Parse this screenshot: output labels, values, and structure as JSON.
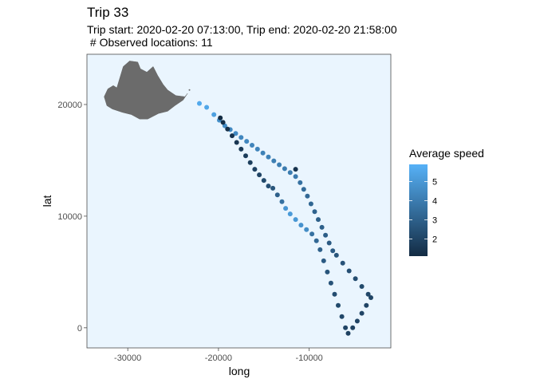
{
  "chart_data": {
    "type": "scatter",
    "title": "Trip 33",
    "subtitle_line1": "Trip start: 2020-02-20 07:13:00, Trip end: 2020-02-20 21:58:00",
    "subtitle_line2": " # Observed locations: 11",
    "xlabel": "long",
    "ylabel": "lat",
    "xlim": [
      -34500,
      -1000
    ],
    "ylim": [
      -1800,
      24500
    ],
    "x_ticks": [
      -30000,
      -20000,
      -10000
    ],
    "x_tick_labels": [
      "-30000",
      "-20000",
      "-10000"
    ],
    "y_ticks": [
      0,
      10000,
      20000
    ],
    "y_tick_labels": [
      "0",
      "10000",
      "20000"
    ],
    "panel_background": "#eaf5fe",
    "legend": {
      "title": "Average speed",
      "breaks": [
        2,
        3,
        4,
        5
      ],
      "break_labels": [
        "2",
        "3",
        "4",
        "5"
      ],
      "range": [
        1.1,
        5.9
      ],
      "color_low": "#132b43",
      "color_high": "#56b1f7"
    },
    "points": [
      {
        "x": -22100,
        "y": 20100,
        "speed": 5.6
      },
      {
        "x": -21300,
        "y": 19750,
        "speed": 5.5
      },
      {
        "x": -20500,
        "y": 19100,
        "speed": 5.3
      },
      {
        "x": -19900,
        "y": 18600,
        "speed": 4.7
      },
      {
        "x": -19300,
        "y": 18100,
        "speed": 4.6
      },
      {
        "x": -18700,
        "y": 17750,
        "speed": 4.5
      },
      {
        "x": -18100,
        "y": 17400,
        "speed": 4.5
      },
      {
        "x": -17500,
        "y": 17050,
        "speed": 4.4
      },
      {
        "x": -16900,
        "y": 16700,
        "speed": 4.4
      },
      {
        "x": -16300,
        "y": 16350,
        "speed": 4.3
      },
      {
        "x": -15700,
        "y": 16000,
        "speed": 4.3
      },
      {
        "x": -15100,
        "y": 15650,
        "speed": 4.2
      },
      {
        "x": -14500,
        "y": 15300,
        "speed": 4.2
      },
      {
        "x": -13900,
        "y": 14950,
        "speed": 4.1
      },
      {
        "x": -13300,
        "y": 14600,
        "speed": 4.1
      },
      {
        "x": -12700,
        "y": 14250,
        "speed": 4.0
      },
      {
        "x": -12100,
        "y": 13900,
        "speed": 4.0
      },
      {
        "x": -11500,
        "y": 13550,
        "speed": 3.9
      },
      {
        "x": -11000,
        "y": 13000,
        "speed": 3.6
      },
      {
        "x": -10600,
        "y": 12400,
        "speed": 3.4
      },
      {
        "x": -10200,
        "y": 11800,
        "speed": 3.3
      },
      {
        "x": -9800,
        "y": 11100,
        "speed": 3.2
      },
      {
        "x": -9400,
        "y": 10400,
        "speed": 3.1
      },
      {
        "x": -9000,
        "y": 9700,
        "speed": 3.0
      },
      {
        "x": -8600,
        "y": 9000,
        "speed": 3.0
      },
      {
        "x": -8200,
        "y": 8300,
        "speed": 2.9
      },
      {
        "x": -7800,
        "y": 7600,
        "speed": 2.8
      },
      {
        "x": -7400,
        "y": 6900,
        "speed": 2.8
      },
      {
        "x": -7000,
        "y": 6500,
        "speed": 2.6
      },
      {
        "x": -6300,
        "y": 5800,
        "speed": 2.5
      },
      {
        "x": -5600,
        "y": 5100,
        "speed": 2.4
      },
      {
        "x": -4900,
        "y": 4400,
        "speed": 2.3
      },
      {
        "x": -4200,
        "y": 3700,
        "speed": 2.2
      },
      {
        "x": -3500,
        "y": 3000,
        "speed": 2.1
      },
      {
        "x": -3200,
        "y": 2700,
        "speed": 2.0
      },
      {
        "x": -3700,
        "y": 2000,
        "speed": 2.0
      },
      {
        "x": -4200,
        "y": 1300,
        "speed": 2.0
      },
      {
        "x": -4700,
        "y": 600,
        "speed": 2.0
      },
      {
        "x": -5200,
        "y": 0,
        "speed": 1.9
      },
      {
        "x": -5700,
        "y": -500,
        "speed": 1.9
      },
      {
        "x": -6000,
        "y": 0,
        "speed": 2.0
      },
      {
        "x": -6400,
        "y": 1000,
        "speed": 2.1
      },
      {
        "x": -6800,
        "y": 2000,
        "speed": 2.2
      },
      {
        "x": -7200,
        "y": 3000,
        "speed": 2.3
      },
      {
        "x": -7600,
        "y": 4000,
        "speed": 2.5
      },
      {
        "x": -8000,
        "y": 5000,
        "speed": 2.6
      },
      {
        "x": -8400,
        "y": 6000,
        "speed": 2.8
      },
      {
        "x": -8800,
        "y": 7000,
        "speed": 3.0
      },
      {
        "x": -9200,
        "y": 7800,
        "speed": 3.3
      },
      {
        "x": -9700,
        "y": 8400,
        "speed": 3.6
      },
      {
        "x": -10300,
        "y": 8800,
        "speed": 4.6
      },
      {
        "x": -10900,
        "y": 9200,
        "speed": 4.8
      },
      {
        "x": -11500,
        "y": 9700,
        "speed": 5.0
      },
      {
        "x": -12100,
        "y": 10200,
        "speed": 5.1
      },
      {
        "x": -12600,
        "y": 10700,
        "speed": 4.9
      },
      {
        "x": -13000,
        "y": 11300,
        "speed": 3.6
      },
      {
        "x": -13500,
        "y": 11900,
        "speed": 3.0
      },
      {
        "x": -14000,
        "y": 12500,
        "speed": 2.6
      },
      {
        "x": -14500,
        "y": 12700,
        "speed": 2.4
      },
      {
        "x": -15000,
        "y": 13200,
        "speed": 2.2
      },
      {
        "x": -15500,
        "y": 13700,
        "speed": 2.0
      },
      {
        "x": -16000,
        "y": 14200,
        "speed": 1.9
      },
      {
        "x": -16500,
        "y": 14800,
        "speed": 1.8
      },
      {
        "x": -17000,
        "y": 15400,
        "speed": 1.7
      },
      {
        "x": -17500,
        "y": 16000,
        "speed": 1.6
      },
      {
        "x": -18000,
        "y": 16600,
        "speed": 1.5
      },
      {
        "x": -18500,
        "y": 17200,
        "speed": 1.4
      },
      {
        "x": -19000,
        "y": 17800,
        "speed": 1.3
      },
      {
        "x": -19500,
        "y": 18400,
        "speed": 1.2
      },
      {
        "x": -19800,
        "y": 18800,
        "speed": 1.1
      },
      {
        "x": -11500,
        "y": 14200,
        "speed": 1.4
      }
    ],
    "land_outline": [
      [
        -31200,
        21500
      ],
      [
        -30500,
        23400
      ],
      [
        -29800,
        23900
      ],
      [
        -28900,
        23800
      ],
      [
        -28600,
        23200
      ],
      [
        -27900,
        22900
      ],
      [
        -27200,
        23400
      ],
      [
        -26700,
        22600
      ],
      [
        -26100,
        21800
      ],
      [
        -25600,
        21300
      ],
      [
        -24700,
        20800
      ],
      [
        -23700,
        20700
      ],
      [
        -23400,
        21000
      ],
      [
        -23900,
        20400
      ],
      [
        -24800,
        19900
      ],
      [
        -25600,
        19400
      ],
      [
        -26600,
        19200
      ],
      [
        -27800,
        18700
      ],
      [
        -28700,
        18700
      ],
      [
        -29600,
        19100
      ],
      [
        -30600,
        19300
      ],
      [
        -31700,
        19600
      ],
      [
        -32300,
        19900
      ],
      [
        -32600,
        20700
      ],
      [
        -32200,
        21400
      ],
      [
        -31600,
        21700
      ]
    ]
  }
}
